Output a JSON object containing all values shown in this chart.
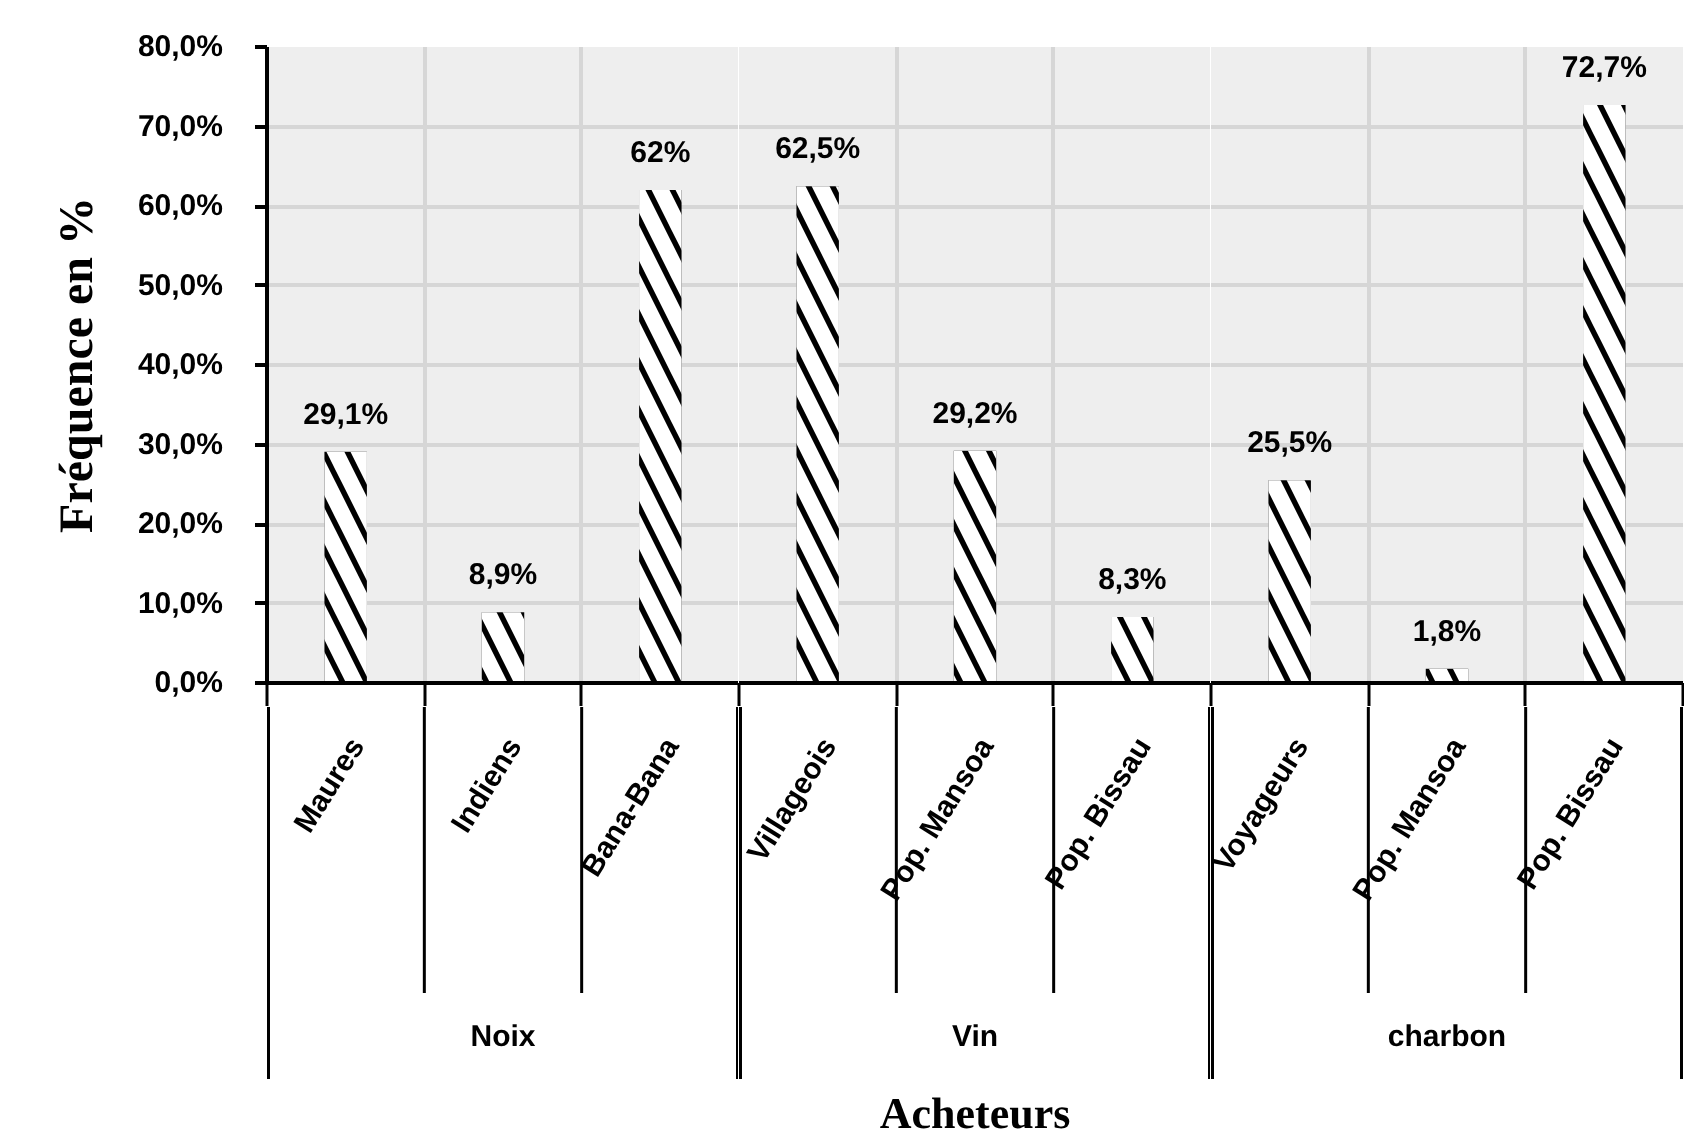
{
  "chart_data": [
    {
      "type": "bar",
      "ylabel": "Fréquence en %",
      "xlabel": "Noix",
      "categories": [
        "Maures",
        "Indiens",
        "Bana-Bana"
      ],
      "values": [
        29.1,
        8.9,
        62
      ],
      "value_labels": [
        "29,1%",
        "8,9%",
        "62%"
      ],
      "color": "#000000",
      "ylim": [
        0,
        80
      ],
      "yticks": [
        {
          "value": 0,
          "label": "0,0%"
        },
        {
          "value": 10,
          "label": "10,0%"
        },
        {
          "value": 20,
          "label": "20,0%"
        },
        {
          "value": 30,
          "label": "30,0%"
        },
        {
          "value": 40,
          "label": "40,0%"
        },
        {
          "value": 50,
          "label": "50,0%"
        },
        {
          "value": 60,
          "label": "60,0%"
        },
        {
          "value": 70,
          "label": "70,0%"
        },
        {
          "value": 80,
          "label": "80,0%"
        }
      ],
      "grid": true
    },
    {
      "type": "bar",
      "xlabel": "Vin",
      "categories": [
        "Villageois",
        "Pop. Mansoa",
        "Pop. Bissau"
      ],
      "values": [
        62.5,
        29.2,
        8.3
      ],
      "value_labels": [
        "62,5%",
        "29,2%",
        "8,3%"
      ],
      "color": "#000000",
      "ylim": [
        0,
        80
      ],
      "yticks": [
        0,
        10,
        20,
        30,
        40,
        50,
        60,
        70,
        80
      ],
      "grid": true,
      "tick_labels": "x",
      "annotations": [
        "Acheteurs"
      ]
    },
    {
      "type": "bar",
      "xlabel": "charbon",
      "categories": [
        "Voyageurs",
        "Pop. Mansoa",
        "Pop. Bissau"
      ],
      "values": [
        25.5,
        1.8,
        72.7
      ],
      "value_labels": [
        "25,5%",
        "1,8%",
        "72,7%"
      ],
      "color": "#000000",
      "ylim": [
        0,
        80
      ],
      "yticks": [
        0,
        10,
        20,
        30,
        40,
        50,
        60,
        70,
        80
      ],
      "grid": true,
      "tick_labels": "x"
    }
  ]
}
